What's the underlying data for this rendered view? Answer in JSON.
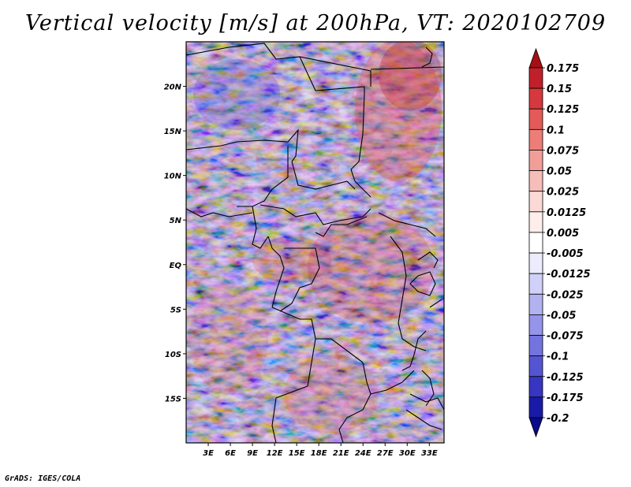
{
  "title": "Vertical velocity [m/s] at 200hPa, VT: 2020102709",
  "credit": "GrADS: IGES/COLA",
  "axes": {
    "lat_labels": [
      "20N",
      "15N",
      "10N",
      "5N",
      "EQ",
      "5S",
      "10S",
      "15S"
    ],
    "lat_values": [
      20,
      15,
      10,
      5,
      0,
      -5,
      -10,
      -15
    ],
    "lon_labels": [
      "3E",
      "6E",
      "9E",
      "12E",
      "15E",
      "18E",
      "21E",
      "24E",
      "27E",
      "30E",
      "33E"
    ],
    "lon_values": [
      3,
      6,
      9,
      12,
      15,
      18,
      21,
      24,
      27,
      30,
      33
    ],
    "lon_range": [
      0,
      35
    ],
    "lat_range": [
      -20,
      25
    ]
  },
  "colorbar": {
    "labels": [
      "0.175",
      "0.15",
      "0.125",
      "0.1",
      "0.075",
      "0.05",
      "0.025",
      "0.0125",
      "0.005",
      "-0.005",
      "-0.0125",
      "-0.025",
      "-0.05",
      "-0.075",
      "-0.1",
      "-0.125",
      "-0.175",
      "-0.2"
    ],
    "colors": [
      "#a50f15",
      "#c0202a",
      "#d6393d",
      "#e35a58",
      "#ec7d78",
      "#f29e98",
      "#f7bdb8",
      "#fbd9d6",
      "#fdeeec",
      "#ffffff",
      "#ececfd",
      "#d0d0f8",
      "#b2b2f1",
      "#9494ea",
      "#7474df",
      "#5555d2",
      "#3636c2",
      "#1a1aa8",
      "#0a0a8a"
    ]
  }
}
